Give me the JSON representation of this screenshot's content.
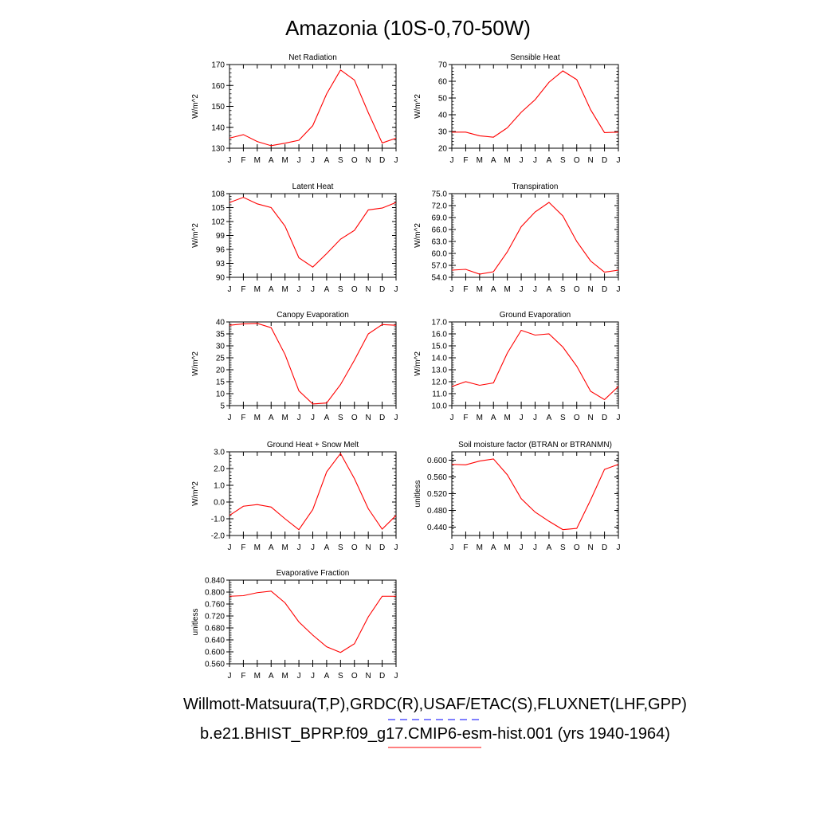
{
  "figure": {
    "title": "Amazonia (10S-0,70-50W)",
    "legend_obs": "Willmott-Matsuura(T,P),GRDC(R),USAF/ETAC(S),FLUXNET(LHF,GPP)",
    "legend_model": "b.e21.BHIST_BPRP.f09_g17.CMIP6-esm-hist.001 (yrs 1940-1964)",
    "colors": {
      "model": "#ff0000",
      "obs": "#0000ff",
      "axis": "#000000"
    },
    "months": [
      "J",
      "F",
      "M",
      "A",
      "M",
      "J",
      "J",
      "A",
      "S",
      "O",
      "N",
      "D",
      "J"
    ]
  },
  "chart_data": [
    {
      "type": "line",
      "title": "Net Radiation",
      "ylabel": "W/m^2",
      "ylim": [
        130,
        170
      ],
      "yticks": [
        "130",
        "140",
        "150",
        "160",
        "170"
      ],
      "x": [
        "J",
        "F",
        "M",
        "A",
        "M",
        "J",
        "J",
        "A",
        "S",
        "O",
        "N",
        "D",
        "J"
      ],
      "series": [
        {
          "values": [
            134.8,
            136.5,
            133.2,
            131.2,
            132.4,
            133.8,
            140.8,
            156.0,
            167.4,
            162.6,
            147.0,
            132.5,
            134.8
          ]
        }
      ]
    },
    {
      "type": "line",
      "title": "Sensible Heat",
      "ylabel": "W/m^2",
      "ylim": [
        20,
        70
      ],
      "yticks": [
        "20",
        "30",
        "40",
        "50",
        "60",
        "70"
      ],
      "x": [
        "J",
        "F",
        "M",
        "A",
        "M",
        "J",
        "J",
        "A",
        "S",
        "O",
        "N",
        "D",
        "J"
      ],
      "series": [
        {
          "values": [
            29.6,
            29.6,
            27.4,
            26.6,
            32.2,
            41.5,
            49.0,
            59.4,
            66.2,
            61.0,
            43.0,
            29.3,
            29.6
          ]
        }
      ]
    },
    {
      "type": "line",
      "title": "Latent Heat",
      "ylabel": "W/m^2",
      "ylim": [
        90,
        108
      ],
      "yticks": [
        "90",
        "93",
        "96",
        "99",
        "102",
        "105",
        "108"
      ],
      "x": [
        "J",
        "F",
        "M",
        "A",
        "M",
        "J",
        "J",
        "A",
        "S",
        "O",
        "N",
        "D",
        "J"
      ],
      "series": [
        {
          "values": [
            106.1,
            107.2,
            105.8,
            105.0,
            101.0,
            94.2,
            92.2,
            95.1,
            98.2,
            100.1,
            104.5,
            104.9,
            106.1
          ]
        }
      ]
    },
    {
      "type": "line",
      "title": "Transpiration",
      "ylabel": "W/m^2",
      "ylim": [
        54,
        75
      ],
      "yticks": [
        "54.0",
        "57.0",
        "60.0",
        "63.0",
        "66.0",
        "69.0",
        "72.0",
        "75.0"
      ],
      "x": [
        "J",
        "F",
        "M",
        "A",
        "M",
        "J",
        "J",
        "A",
        "S",
        "O",
        "N",
        "D",
        "J"
      ],
      "series": [
        {
          "values": [
            55.8,
            56.0,
            54.8,
            55.4,
            60.4,
            66.7,
            70.4,
            72.8,
            69.4,
            63.0,
            58.1,
            55.3,
            55.8
          ]
        }
      ]
    },
    {
      "type": "line",
      "title": "Canopy Evaporation",
      "ylabel": "W/m^2",
      "ylim": [
        5,
        40
      ],
      "yticks": [
        "5",
        "10",
        "15",
        "20",
        "25",
        "30",
        "35",
        "40"
      ],
      "x": [
        "J",
        "F",
        "M",
        "A",
        "M",
        "J",
        "J",
        "A",
        "S",
        "O",
        "N",
        "D",
        "J"
      ],
      "series": [
        {
          "values": [
            38.6,
            39.2,
            39.4,
            37.6,
            26.4,
            11.2,
            5.7,
            6.1,
            13.8,
            24.0,
            35.0,
            38.9,
            38.6
          ]
        }
      ]
    },
    {
      "type": "line",
      "title": "Ground Evaporation",
      "ylabel": "W/m^2",
      "ylim": [
        10,
        17
      ],
      "yticks": [
        "10.0",
        "11.0",
        "12.0",
        "13.0",
        "14.0",
        "15.0",
        "16.0",
        "17.0"
      ],
      "x": [
        "J",
        "F",
        "M",
        "A",
        "M",
        "J",
        "J",
        "A",
        "S",
        "O",
        "N",
        "D",
        "J"
      ],
      "series": [
        {
          "values": [
            11.6,
            12.0,
            11.7,
            11.9,
            14.4,
            16.3,
            15.9,
            16.0,
            14.9,
            13.3,
            11.2,
            10.5,
            11.6
          ]
        }
      ]
    },
    {
      "type": "line",
      "title": "Ground Heat + Snow Melt",
      "ylabel": "W/m^2",
      "ylim": [
        -2,
        3
      ],
      "yticks": [
        "-2.0",
        "-1.0",
        "0.0",
        "1.0",
        "2.0",
        "3.0"
      ],
      "x": [
        "J",
        "F",
        "M",
        "A",
        "M",
        "J",
        "J",
        "A",
        "S",
        "O",
        "N",
        "D",
        "J"
      ],
      "series": [
        {
          "values": [
            -0.8,
            -0.25,
            -0.15,
            -0.3,
            -1.0,
            -1.65,
            -0.45,
            1.8,
            2.9,
            1.4,
            -0.4,
            -1.62,
            -0.8
          ]
        }
      ]
    },
    {
      "type": "line",
      "title": "Soil moisture factor (BTRAN or BTRANMN)",
      "ylabel": "unitless",
      "ylim": [
        0.42,
        0.62
      ],
      "yticks": [
        "0.440",
        "0.480",
        "0.520",
        "0.560",
        "0.600"
      ],
      "x": [
        "J",
        "F",
        "M",
        "A",
        "M",
        "J",
        "J",
        "A",
        "S",
        "O",
        "N",
        "D",
        "J"
      ],
      "series": [
        {
          "values": [
            0.59,
            0.589,
            0.598,
            0.603,
            0.565,
            0.508,
            0.476,
            0.454,
            0.434,
            0.437,
            0.505,
            0.578,
            0.59
          ]
        }
      ]
    },
    {
      "type": "line",
      "title": "Evaporative Fraction",
      "ylabel": "unitless",
      "ylim": [
        0.56,
        0.84
      ],
      "yticks": [
        "0.560",
        "0.600",
        "0.640",
        "0.680",
        "0.720",
        "0.760",
        "0.800",
        "0.840"
      ],
      "x": [
        "J",
        "F",
        "M",
        "A",
        "M",
        "J",
        "J",
        "A",
        "S",
        "O",
        "N",
        "D",
        "J"
      ],
      "series": [
        {
          "values": [
            0.786,
            0.788,
            0.798,
            0.803,
            0.764,
            0.7,
            0.656,
            0.617,
            0.598,
            0.627,
            0.717,
            0.786,
            0.786
          ]
        }
      ]
    }
  ]
}
